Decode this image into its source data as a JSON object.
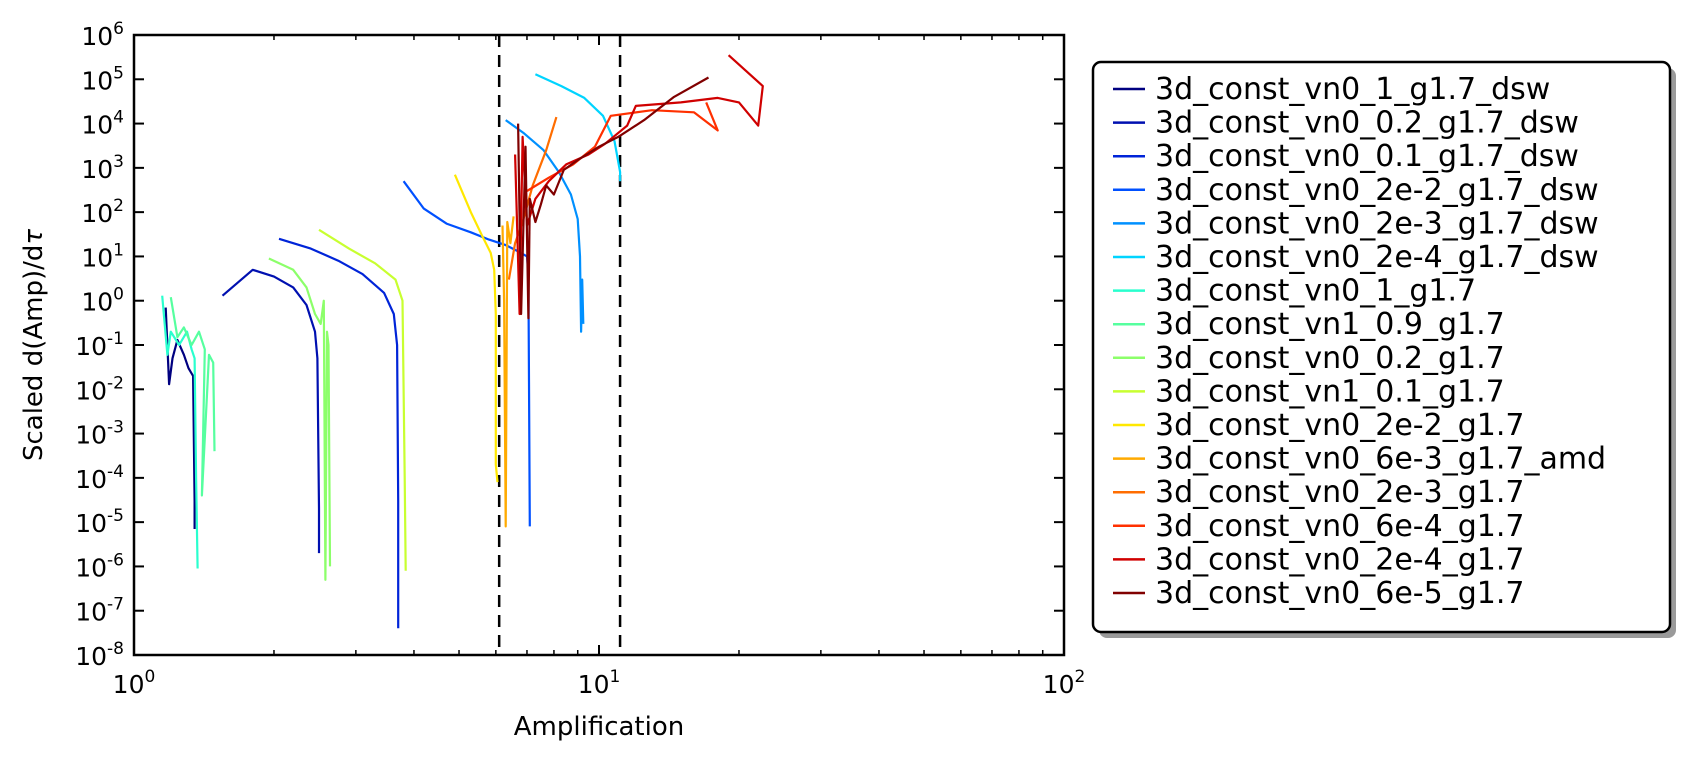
{
  "chart_data": {
    "type": "line",
    "xlabel": "Amplification",
    "ylabel": "Scaled d(Amp)/dτ",
    "x_scale": "log",
    "y_scale": "log",
    "xlim": [
      1,
      100
    ],
    "ylim": [
      1e-08,
      1000000.0
    ],
    "x_ticks": [
      {
        "value": 1,
        "base": "10",
        "exp": "0"
      },
      {
        "value": 10,
        "base": "10",
        "exp": "1"
      },
      {
        "value": 100,
        "base": "10",
        "exp": "2"
      }
    ],
    "y_ticks": [
      {
        "value": 1000000.0,
        "base": "10",
        "exp": "6"
      },
      {
        "value": 100000.0,
        "base": "10",
        "exp": "5"
      },
      {
        "value": 10000.0,
        "base": "10",
        "exp": "4"
      },
      {
        "value": 1000.0,
        "base": "10",
        "exp": "3"
      },
      {
        "value": 100.0,
        "base": "10",
        "exp": "2"
      },
      {
        "value": 10.0,
        "base": "10",
        "exp": "1"
      },
      {
        "value": 1.0,
        "base": "10",
        "exp": "0"
      },
      {
        "value": 0.1,
        "base": "10",
        "exp": "-1"
      },
      {
        "value": 0.01,
        "base": "10",
        "exp": "-2"
      },
      {
        "value": 0.001,
        "base": "10",
        "exp": "-3"
      },
      {
        "value": 0.0001,
        "base": "10",
        "exp": "-4"
      },
      {
        "value": 1e-05,
        "base": "10",
        "exp": "-5"
      },
      {
        "value": 1e-06,
        "base": "10",
        "exp": "-6"
      },
      {
        "value": 1e-07,
        "base": "10",
        "exp": "-7"
      },
      {
        "value": 1e-08,
        "base": "10",
        "exp": "-8"
      }
    ],
    "vlines": [
      6.1,
      11.1
    ],
    "grid": false,
    "legend_position": "outside-right",
    "series": [
      {
        "name": "3d_const_vn0_1_g1.7_dsw",
        "color": "#000080",
        "points": [
          [
            1.17,
            0.7
          ],
          [
            1.19,
            0.013
          ],
          [
            1.21,
            0.05
          ],
          [
            1.24,
            0.13
          ],
          [
            1.28,
            0.06
          ],
          [
            1.31,
            0.03
          ],
          [
            1.34,
            0.02
          ],
          [
            1.35,
            3e-05
          ],
          [
            1.35,
            7e-06
          ]
        ]
      },
      {
        "name": "3d_const_vn0_0.2_g1.7_dsw",
        "color": "#0010b0",
        "points": [
          [
            1.55,
            1.3
          ],
          [
            1.8,
            5
          ],
          [
            2.0,
            3.5
          ],
          [
            2.2,
            2
          ],
          [
            2.35,
            0.8
          ],
          [
            2.45,
            0.2
          ],
          [
            2.48,
            0.05
          ],
          [
            2.5,
            2e-05
          ],
          [
            2.5,
            2e-06
          ]
        ]
      },
      {
        "name": "3d_const_vn0_0.1_g1.7_dsw",
        "color": "#0024d8",
        "points": [
          [
            2.05,
            25
          ],
          [
            2.4,
            15
          ],
          [
            2.75,
            8
          ],
          [
            3.1,
            4
          ],
          [
            3.45,
            1.5
          ],
          [
            3.62,
            0.5
          ],
          [
            3.68,
            0.1
          ],
          [
            3.7,
            3e-05
          ],
          [
            3.7,
            4e-08
          ]
        ]
      },
      {
        "name": "3d_const_vn0_2e-2_g1.7_dsw",
        "color": "#0050ff",
        "points": [
          [
            3.8,
            500
          ],
          [
            4.2,
            120
          ],
          [
            4.7,
            55
          ],
          [
            5.3,
            35
          ],
          [
            5.8,
            24
          ],
          [
            6.3,
            18
          ],
          [
            6.7,
            13
          ],
          [
            7.0,
            10
          ],
          [
            7.05,
            4
          ],
          [
            7.1,
            8e-06
          ]
        ]
      },
      {
        "name": "3d_const_vn0_2e-3_g1.7_dsw",
        "color": "#0090ff",
        "points": [
          [
            6.3,
            12000
          ],
          [
            6.9,
            6000
          ],
          [
            7.6,
            2500
          ],
          [
            8.2,
            800
          ],
          [
            8.7,
            250
          ],
          [
            9.0,
            70
          ],
          [
            9.1,
            10
          ],
          [
            9.15,
            0.2
          ],
          [
            9.2,
            3
          ],
          [
            9.25,
            0.3
          ]
        ]
      },
      {
        "name": "3d_const_vn0_2e-4_g1.7_dsw",
        "color": "#00d4ff",
        "points": [
          [
            7.3,
            130000
          ],
          [
            8.3,
            70000
          ],
          [
            9.3,
            38000
          ],
          [
            10.2,
            15000
          ],
          [
            10.8,
            4000
          ],
          [
            11.1,
            800
          ],
          [
            11.1,
            500
          ]
        ]
      },
      {
        "name": "3d_const_vn0_1_g1.7",
        "color": "#29ffce",
        "points": [
          [
            1.15,
            1.3
          ],
          [
            1.18,
            0.06
          ],
          [
            1.2,
            0.2
          ],
          [
            1.25,
            0.1
          ],
          [
            1.3,
            0.2
          ],
          [
            1.33,
            0.08
          ],
          [
            1.35,
            0.05
          ],
          [
            1.36,
            0.0001
          ],
          [
            1.37,
            9e-07
          ]
        ]
      },
      {
        "name": "3d_const_vn1_0.9_g1.7",
        "color": "#56ff9f",
        "points": [
          [
            1.2,
            1.2
          ],
          [
            1.24,
            0.15
          ],
          [
            1.28,
            0.25
          ],
          [
            1.33,
            0.1
          ],
          [
            1.38,
            0.2
          ],
          [
            1.42,
            0.08
          ],
          [
            1.4,
            4e-05
          ],
          [
            1.45,
            0.06
          ],
          [
            1.48,
            0.04
          ],
          [
            1.49,
            0.0004
          ]
        ]
      },
      {
        "name": "3d_const_vn0_0.2_g1.7",
        "color": "#8cff6a",
        "points": [
          [
            1.95,
            9
          ],
          [
            2.2,
            5
          ],
          [
            2.35,
            2
          ],
          [
            2.45,
            0.5
          ],
          [
            2.52,
            0.3
          ],
          [
            2.56,
            1
          ],
          [
            2.58,
            5e-07
          ],
          [
            2.6,
            0.2
          ],
          [
            2.62,
            0.1
          ],
          [
            2.64,
            1e-06
          ]
        ]
      },
      {
        "name": "3d_const_vn1_0.1_g1.7",
        "color": "#c8ff30",
        "points": [
          [
            2.5,
            40
          ],
          [
            2.9,
            15
          ],
          [
            3.3,
            7
          ],
          [
            3.65,
            3
          ],
          [
            3.78,
            1
          ],
          [
            3.82,
            0.0001
          ],
          [
            3.84,
            8e-07
          ]
        ]
      },
      {
        "name": "3d_const_vn0_2e-2_g1.7",
        "color": "#ffe800",
        "points": [
          [
            4.9,
            700
          ],
          [
            5.3,
            100
          ],
          [
            5.6,
            30
          ],
          [
            5.85,
            12
          ],
          [
            5.95,
            5
          ],
          [
            6.0,
            0.5
          ],
          [
            6.0,
            0.0002
          ],
          [
            6.05,
            8e-05
          ]
        ]
      },
      {
        "name": "3d_const_vn0_6e-3_g1.7_amd",
        "color": "#ffaa00",
        "points": [
          [
            6.2,
            50
          ],
          [
            6.25,
            1
          ],
          [
            6.3,
            8e-06
          ],
          [
            6.35,
            60
          ],
          [
            6.45,
            20
          ],
          [
            6.55,
            80
          ]
        ]
      },
      {
        "name": "3d_const_vn0_2e-3_g1.7",
        "color": "#ff6d00",
        "points": [
          [
            6.4,
            3
          ],
          [
            6.6,
            20
          ],
          [
            6.85,
            60
          ],
          [
            7.2,
            400
          ],
          [
            7.7,
            2500
          ],
          [
            8.1,
            14000
          ]
        ]
      },
      {
        "name": "3d_const_vn0_6e-4_g1.7",
        "color": "#ff3000",
        "points": [
          [
            7.0,
            300
          ],
          [
            7.8,
            600
          ],
          [
            8.8,
            1200
          ],
          [
            9.8,
            3000
          ],
          [
            10.6,
            15000
          ],
          [
            13,
            20000
          ],
          [
            16,
            18000
          ],
          [
            18,
            7000
          ],
          [
            17,
            30000
          ]
        ]
      },
      {
        "name": "3d_const_vn0_2e-4_g1.7",
        "color": "#d00000",
        "points": [
          [
            6.6,
            2000
          ],
          [
            6.75,
            0.5
          ],
          [
            6.85,
            5000
          ],
          [
            7.0,
            50
          ],
          [
            7.3,
            200
          ],
          [
            7.8,
            500
          ],
          [
            8.5,
            1200
          ],
          [
            9.5,
            2000
          ],
          [
            10.3,
            3500
          ],
          [
            11.5,
            9000
          ],
          [
            12,
            25000
          ],
          [
            15,
            30000
          ],
          [
            18,
            38000
          ],
          [
            20,
            30000
          ],
          [
            22,
            9000
          ],
          [
            22.5,
            70000
          ],
          [
            19,
            350000
          ]
        ]
      },
      {
        "name": "3d_const_vn0_6e-5_g1.7",
        "color": "#800000",
        "points": [
          [
            6.7,
            10000
          ],
          [
            6.8,
            0.5
          ],
          [
            6.95,
            3000
          ],
          [
            7.05,
            0.4
          ],
          [
            7.1,
            200
          ],
          [
            7.3,
            60
          ],
          [
            7.5,
            150
          ],
          [
            7.7,
            400
          ],
          [
            8.0,
            250
          ],
          [
            8.4,
            900
          ],
          [
            9.0,
            1500
          ],
          [
            10.0,
            3000
          ],
          [
            11.0,
            5000
          ],
          [
            12.5,
            12000
          ],
          [
            14.5,
            40000
          ],
          [
            17.2,
            110000
          ]
        ]
      }
    ]
  }
}
